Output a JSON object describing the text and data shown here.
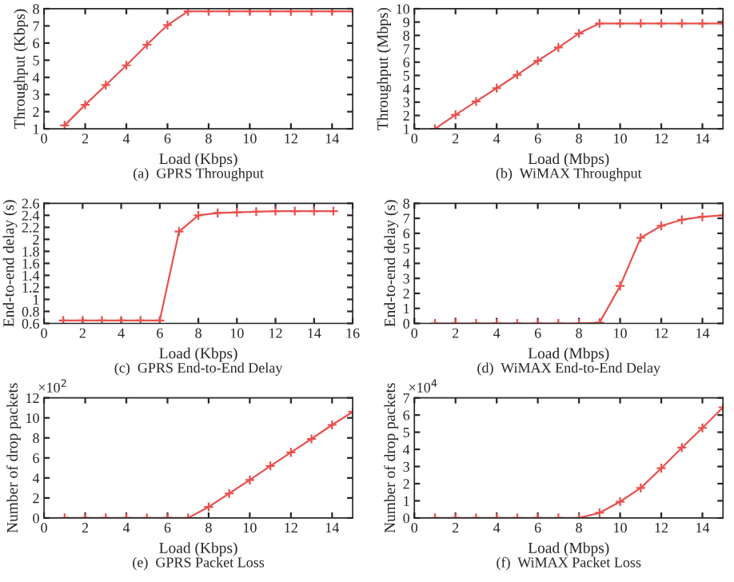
{
  "chart_data": [
    {
      "type": "line",
      "title": "(a)  GPRS Throughput",
      "xlabel": "Load (Kbps)",
      "ylabel": "Throughput (Kbps)",
      "x": [
        1,
        2,
        3,
        4,
        5,
        6,
        7,
        8,
        9,
        10,
        11,
        12,
        13,
        14,
        15
      ],
      "values": [
        1.2,
        2.4,
        3.55,
        4.7,
        5.9,
        7.05,
        7.85,
        7.85,
        7.85,
        7.85,
        7.85,
        7.85,
        7.85,
        7.85,
        7.85
      ],
      "color": "#e8524f",
      "marker": "cross",
      "xlim": [
        0,
        15
      ],
      "xticks": [
        0,
        2,
        4,
        6,
        8,
        10,
        12,
        14
      ],
      "ylim": [
        1,
        8
      ],
      "yticks": [
        1,
        2,
        3,
        4,
        5,
        6,
        7,
        8
      ],
      "grid": false
    },
    {
      "type": "line",
      "title": "(b)  WiMAX Throughput",
      "xlabel": "Load (Mbps)",
      "ylabel": "Throughput (Mbps)",
      "x": [
        1,
        2,
        3,
        4,
        5,
        6,
        7,
        8,
        9,
        10,
        11,
        12,
        13,
        14,
        15
      ],
      "values": [
        1,
        2.05,
        3.05,
        4.05,
        5.05,
        6.1,
        7.1,
        8.15,
        8.9,
        8.9,
        8.9,
        8.9,
        8.9,
        8.9,
        8.9
      ],
      "color": "#e8524f",
      "marker": "cross",
      "xlim": [
        0,
        15
      ],
      "xticks": [
        0,
        2,
        4,
        6,
        8,
        10,
        12,
        14
      ],
      "ylim": [
        1,
        10
      ],
      "yticks": [
        1,
        2,
        3,
        4,
        5,
        6,
        7,
        8,
        9,
        10
      ],
      "grid": false
    },
    {
      "type": "line",
      "title": "(c)  GPRS End-to-End Delay",
      "xlabel": "Load (Kbps)",
      "ylabel": "End-to-end delay (s)",
      "x": [
        1,
        2,
        3,
        4,
        5,
        6,
        7,
        8,
        9,
        10,
        11,
        12,
        13,
        14,
        15
      ],
      "values": [
        0.65,
        0.65,
        0.65,
        0.65,
        0.65,
        0.65,
        2.13,
        2.4,
        2.44,
        2.45,
        2.46,
        2.47,
        2.47,
        2.47,
        2.47
      ],
      "color": "#e8524f",
      "marker": "cross",
      "xlim": [
        0,
        16
      ],
      "xticks": [
        0,
        2,
        4,
        6,
        8,
        10,
        12,
        14,
        16
      ],
      "ylim": [
        0.6,
        2.6
      ],
      "yticks": [
        0.6,
        0.8,
        1,
        1.2,
        1.4,
        1.6,
        1.8,
        2,
        2.2,
        2.4,
        2.6
      ],
      "grid": false
    },
    {
      "type": "line",
      "title": "(d)  WiMAX End-to-End Delay",
      "xlabel": "Load (Mbps)",
      "ylabel": "End-to-end delay (s)",
      "x": [
        1,
        2,
        3,
        4,
        5,
        6,
        7,
        8,
        9,
        10,
        11,
        12,
        13,
        14,
        15
      ],
      "values": [
        0,
        0,
        0,
        0,
        0,
        0,
        0,
        0,
        0.05,
        2.5,
        5.7,
        6.5,
        6.9,
        7.1,
        7.2
      ],
      "color": "#e8524f",
      "marker": "cross",
      "xlim": [
        0,
        15
      ],
      "xticks": [
        0,
        2,
        4,
        6,
        8,
        10,
        12,
        14
      ],
      "ylim": [
        0,
        8
      ],
      "yticks": [
        0,
        1,
        2,
        3,
        4,
        5,
        6,
        7,
        8
      ],
      "grid": false
    },
    {
      "type": "line",
      "title": "(e)  GPRS Packet Loss",
      "xlabel": "Load (Kbps)",
      "ylabel": "Number of drop packets",
      "annotations": [
        "×10$^{2}$"
      ],
      "x": [
        1,
        2,
        3,
        4,
        5,
        6,
        7,
        8,
        9,
        10,
        11,
        12,
        13,
        14,
        15
      ],
      "values": [
        0,
        0,
        0,
        0,
        0,
        0,
        0,
        1.1,
        2.45,
        3.8,
        5.2,
        6.55,
        7.9,
        9.3,
        10.6
      ],
      "color": "#e8524f",
      "marker": "cross",
      "xlim": [
        0,
        15
      ],
      "xticks": [
        0,
        2,
        4,
        6,
        8,
        10,
        12,
        14
      ],
      "ylim": [
        0,
        12
      ],
      "yticks": [
        0,
        2,
        4,
        6,
        8,
        10,
        12
      ],
      "grid": false
    },
    {
      "type": "line",
      "title": "(f)  WiMAX Packet Loss",
      "xlabel": "Load (Mbps)",
      "ylabel": "Number of drop packets",
      "annotations": [
        "×10$^{4}$"
      ],
      "x": [
        1,
        2,
        3,
        4,
        5,
        6,
        7,
        8,
        9,
        10,
        11,
        12,
        13,
        14,
        15
      ],
      "values": [
        0,
        0,
        0,
        0,
        0,
        0,
        0,
        0,
        0.3,
        0.95,
        1.75,
        2.9,
        4.1,
        5.25,
        6.45
      ],
      "color": "#e8524f",
      "marker": "cross",
      "xlim": [
        0,
        15
      ],
      "xticks": [
        0,
        2,
        4,
        6,
        8,
        10,
        12,
        14
      ],
      "ylim": [
        0,
        7
      ],
      "yticks": [
        0,
        1,
        2,
        3,
        4,
        5,
        6,
        7
      ],
      "grid": false
    }
  ]
}
